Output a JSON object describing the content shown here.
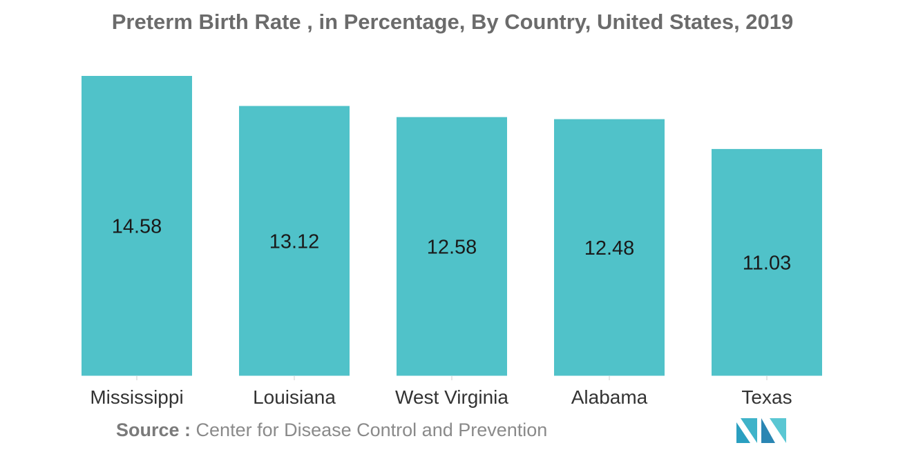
{
  "title": "Preterm Birth Rate , in Percentage, By Country, United States, 2019",
  "source": {
    "label": "Source :",
    "text": "Center for Disease Control and Prevention"
  },
  "colors": {
    "bar": "#50c2c9",
    "title": "#6b6b6b",
    "axis": "#cccccc"
  },
  "chart_data": {
    "type": "bar",
    "title": "Preterm Birth Rate , in Percentage, By Country, United States, 2019",
    "categories": [
      "Mississippi",
      "Louisiana",
      "West Virginia",
      "Alabama",
      "Texas"
    ],
    "values": [
      14.58,
      13.12,
      12.58,
      12.48,
      11.03
    ],
    "xlabel": "",
    "ylabel": "",
    "ylim": [
      0,
      14.58
    ],
    "grid": false,
    "data_labels": true
  }
}
